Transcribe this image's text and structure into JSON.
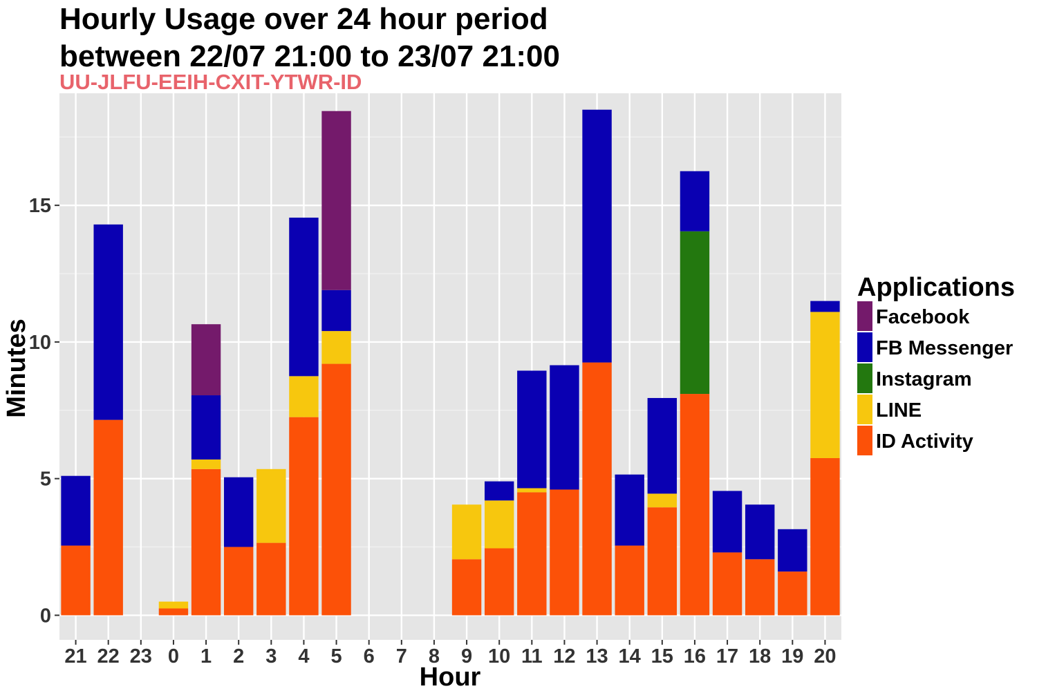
{
  "chart_data": {
    "type": "bar",
    "stacked": true,
    "title_line1": "Hourly Usage over 24 hour period",
    "title_line2": "between 22/07 21:00 to 23/07 21:00",
    "subtitle": "UU-JLFU-EEIH-CXIT-YTWR-ID",
    "subtitle_color": "#E8636B",
    "xlabel": "Hour",
    "ylabel": "Minutes",
    "ylim": [
      -0.9,
      19.1
    ],
    "yticks": [
      0,
      5,
      10,
      15
    ],
    "grid": true,
    "panel_background": "#E5E5E5",
    "legend_title": "Applications",
    "legend_position": "right",
    "categories": [
      "21",
      "22",
      "23",
      "0",
      "1",
      "2",
      "3",
      "4",
      "5",
      "6",
      "7",
      "8",
      "9",
      "10",
      "11",
      "12",
      "13",
      "14",
      "15",
      "16",
      "17",
      "18",
      "19",
      "20"
    ],
    "series": [
      {
        "name": "ID Activity",
        "color": "#FC5108",
        "values": [
          2.55,
          7.15,
          0,
          0.25,
          5.35,
          2.5,
          2.65,
          7.25,
          9.2,
          0,
          0,
          0,
          2.05,
          2.45,
          4.5,
          4.6,
          9.25,
          2.55,
          3.95,
          8.1,
          2.3,
          2.05,
          1.6,
          5.75
        ]
      },
      {
        "name": "LINE",
        "color": "#F7C70E",
        "values": [
          0,
          0,
          0,
          0.25,
          0.35,
          0,
          2.7,
          1.5,
          1.2,
          0,
          0,
          0,
          2.0,
          1.75,
          0.15,
          0,
          0,
          0,
          0.5,
          0,
          0,
          0,
          0,
          5.35
        ]
      },
      {
        "name": "Instagram",
        "color": "#23780F",
        "values": [
          0,
          0,
          0,
          0,
          0,
          0,
          0,
          0,
          0,
          0,
          0,
          0,
          0,
          0,
          0,
          0,
          0,
          0,
          0,
          5.95,
          0,
          0,
          0,
          0
        ]
      },
      {
        "name": "FB Messenger",
        "color": "#0A00B2",
        "values": [
          2.55,
          7.15,
          0,
          0,
          2.35,
          2.55,
          0,
          5.8,
          1.5,
          0,
          0,
          0,
          0,
          0.7,
          4.3,
          4.55,
          9.25,
          2.6,
          3.5,
          2.2,
          2.25,
          2.0,
          1.55,
          0.4
        ]
      },
      {
        "name": "Facebook",
        "color": "#741A6B",
        "values": [
          0,
          0,
          0,
          0,
          2.6,
          0,
          0,
          0,
          6.55,
          0,
          0,
          0,
          0,
          0,
          0,
          0,
          0,
          0,
          0,
          0,
          0,
          0,
          0,
          0
        ]
      }
    ],
    "legend_order": [
      "Facebook",
      "FB Messenger",
      "Instagram",
      "LINE",
      "ID Activity"
    ]
  }
}
